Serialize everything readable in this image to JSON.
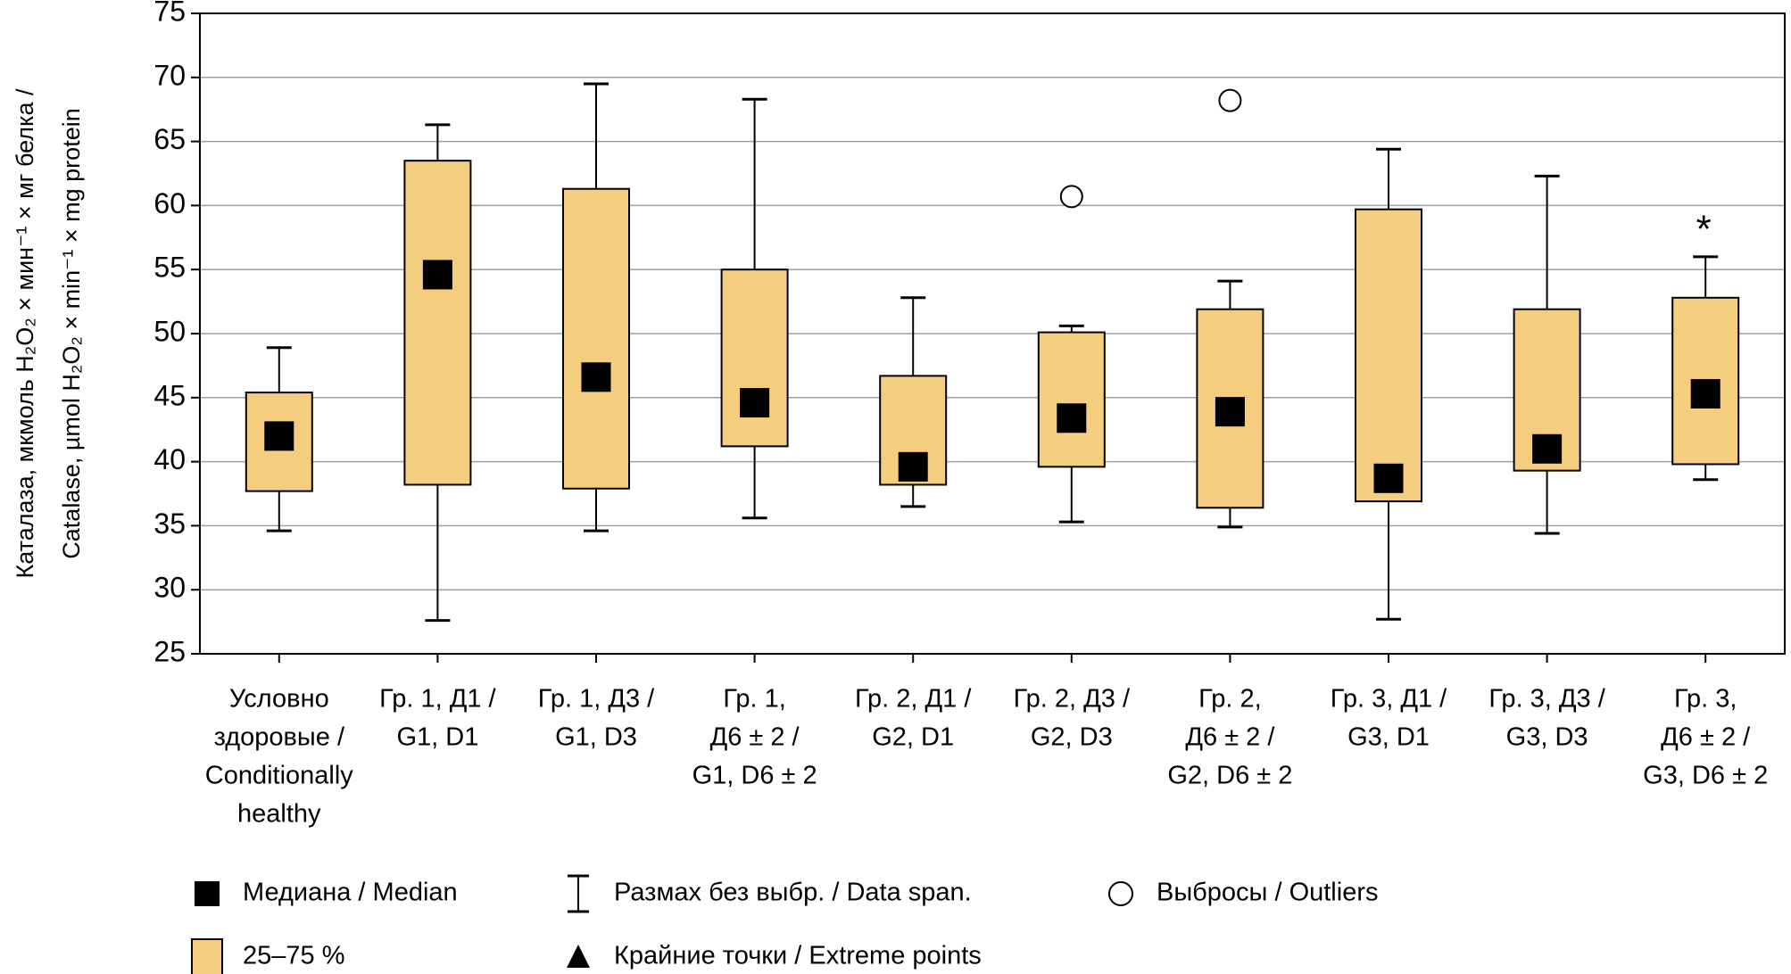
{
  "chart_data": {
    "type": "box",
    "y_label": [
      "Каталаза, мкмоль H₂O₂ × мин⁻¹ × мг белка /",
      "Catalase, µmol H₂O₂ × min⁻¹ × mg  protein"
    ],
    "categories": [
      [
        "Условно",
        "здоровые /",
        "Conditionally",
        "healthy"
      ],
      [
        "Гр. 1, Д1 /",
        "G1, D1"
      ],
      [
        "Гр. 1, Д3 /",
        "G1, D3"
      ],
      [
        "Гр. 1,",
        "Д6 ± 2 /",
        "G1, D6 ± 2"
      ],
      [
        "Гр. 2, Д1 /",
        "G2, D1"
      ],
      [
        "Гр. 2, Д3 /",
        "G2, D3"
      ],
      [
        "Гр. 2,",
        "Д6 ± 2 /",
        "G2, D6 ± 2"
      ],
      [
        "Гр. 3, Д1 /",
        "G3, D1"
      ],
      [
        "Гр. 3, Д3 /",
        "G3, D3"
      ],
      [
        "Гр. 3,",
        "Д6 ± 2 /",
        "G3, D6 ± 2"
      ]
    ],
    "boxes": [
      {
        "low": 34.6,
        "q1": 37.7,
        "median": 42.0,
        "q3": 45.4,
        "high": 48.9,
        "outliers": []
      },
      {
        "low": 27.6,
        "q1": 38.2,
        "median": 54.6,
        "q3": 63.5,
        "high": 66.3,
        "outliers": []
      },
      {
        "low": 34.6,
        "q1": 37.9,
        "median": 46.6,
        "q3": 61.3,
        "high": 69.5,
        "outliers": []
      },
      {
        "low": 35.6,
        "q1": 41.2,
        "median": 44.6,
        "q3": 55.0,
        "high": 68.3,
        "outliers": []
      },
      {
        "low": 36.5,
        "q1": 38.2,
        "median": 39.6,
        "q3": 46.7,
        "high": 52.8,
        "outliers": []
      },
      {
        "low": 35.3,
        "q1": 39.6,
        "median": 43.4,
        "q3": 50.1,
        "high": 50.6,
        "outliers": [
          60.7
        ]
      },
      {
        "low": 34.9,
        "q1": 36.4,
        "median": 43.9,
        "q3": 51.9,
        "high": 54.1,
        "outliers": [
          68.2
        ]
      },
      {
        "low": 27.7,
        "q1": 36.9,
        "median": 38.7,
        "q3": 59.7,
        "high": 64.4,
        "outliers": []
      },
      {
        "low": 34.4,
        "q1": 39.3,
        "median": 41.0,
        "q3": 51.9,
        "high": 62.3,
        "outliers": []
      },
      {
        "low": 38.6,
        "q1": 39.8,
        "median": 45.3,
        "q3": 52.8,
        "high": 56.0,
        "outliers": [],
        "annotation": "*"
      }
    ],
    "box_color": "#f5cd7e",
    "median_color": "#000000",
    "ylim": [
      25,
      75
    ],
    "yticks": [
      25,
      30,
      35,
      40,
      45,
      50,
      55,
      60,
      65,
      70,
      75
    ],
    "grid": true,
    "legend": [
      {
        "symbol": "median",
        "label": "Медиана / Median"
      },
      {
        "symbol": "span",
        "label": "Размах без выбр. / Data span."
      },
      {
        "symbol": "outlier",
        "label": "Выбросы / Outliers"
      },
      {
        "symbol": "box",
        "label": "25–75 %"
      },
      {
        "symbol": "extreme",
        "label": "Крайние точки / Extreme points"
      }
    ]
  }
}
